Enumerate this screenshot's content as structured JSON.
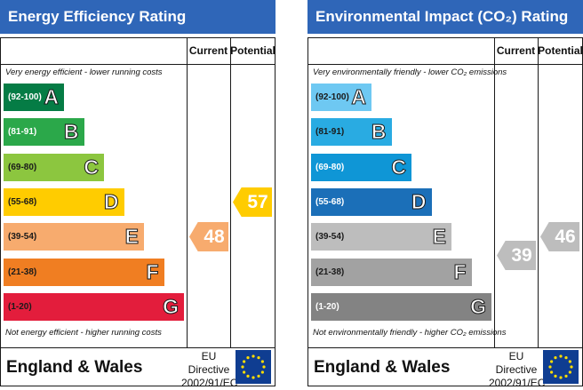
{
  "chart_data": [
    {
      "type": "bar",
      "title": "Energy Efficiency Rating",
      "title_color": "#2f66b8",
      "column_headers": [
        "Current",
        "Potential"
      ],
      "top_note": "Very energy efficient - lower running costs",
      "bottom_note": "Not energy efficient - higher running costs",
      "bands": [
        {
          "range": "(92-100)",
          "letter": "A",
          "color": "#057c45",
          "text_color": "#ffffff"
        },
        {
          "range": "(81-91)",
          "letter": "B",
          "color": "#2ba84a",
          "text_color": "#ffffff"
        },
        {
          "range": "(69-80)",
          "letter": "C",
          "color": "#8cc63f",
          "text_color": "#1a1a1a"
        },
        {
          "range": "(55-68)",
          "letter": "D",
          "color": "#ffcc00",
          "text_color": "#1a1a1a"
        },
        {
          "range": "(39-54)",
          "letter": "E",
          "color": "#f7ab6e",
          "text_color": "#1a1a1a"
        },
        {
          "range": "(21-38)",
          "letter": "F",
          "color": "#f07e22",
          "text_color": "#1a1a1a"
        },
        {
          "range": "(1-20)",
          "letter": "G",
          "color": "#e31d3c",
          "text_color": "#1a1a1a"
        }
      ],
      "current": {
        "value": 48,
        "band": "E",
        "color": "#f7ab6e"
      },
      "potential": {
        "value": 57,
        "band": "D",
        "color": "#ffcc00"
      },
      "country": "England & Wales",
      "directive_line1": "EU Directive",
      "directive_line2": "2002/91/EC"
    },
    {
      "type": "bar",
      "title": "Environmental Impact (CO₂) Rating",
      "title_color": "#2f66b8",
      "column_headers": [
        "Current",
        "Potential"
      ],
      "top_note": "Very environmentally friendly - lower CO₂ emissions",
      "bottom_note": "Not environmentally friendly - higher CO₂ emissions",
      "bands": [
        {
          "range": "(92-100)",
          "letter": "A",
          "color": "#6ec8f2",
          "text_color": "#1a1a1a"
        },
        {
          "range": "(81-91)",
          "letter": "B",
          "color": "#29abe2",
          "text_color": "#1a1a1a"
        },
        {
          "range": "(69-80)",
          "letter": "C",
          "color": "#0f96d6",
          "text_color": "#ffffff"
        },
        {
          "range": "(55-68)",
          "letter": "D",
          "color": "#1b6fb8",
          "text_color": "#ffffff"
        },
        {
          "range": "(39-54)",
          "letter": "E",
          "color": "#bdbdbd",
          "text_color": "#1a1a1a"
        },
        {
          "range": "(21-38)",
          "letter": "F",
          "color": "#a2a2a2",
          "text_color": "#1a1a1a"
        },
        {
          "range": "(1-20)",
          "letter": "G",
          "color": "#838383",
          "text_color": "#ffffff"
        }
      ],
      "current": {
        "value": 39,
        "band": "E",
        "color": "#bdbdbd"
      },
      "potential": {
        "value": 46,
        "band": "E",
        "color": "#bdbdbd"
      },
      "country": "England & Wales",
      "directive_line1": "EU Directive",
      "directive_line2": "2002/91/EC"
    }
  ]
}
